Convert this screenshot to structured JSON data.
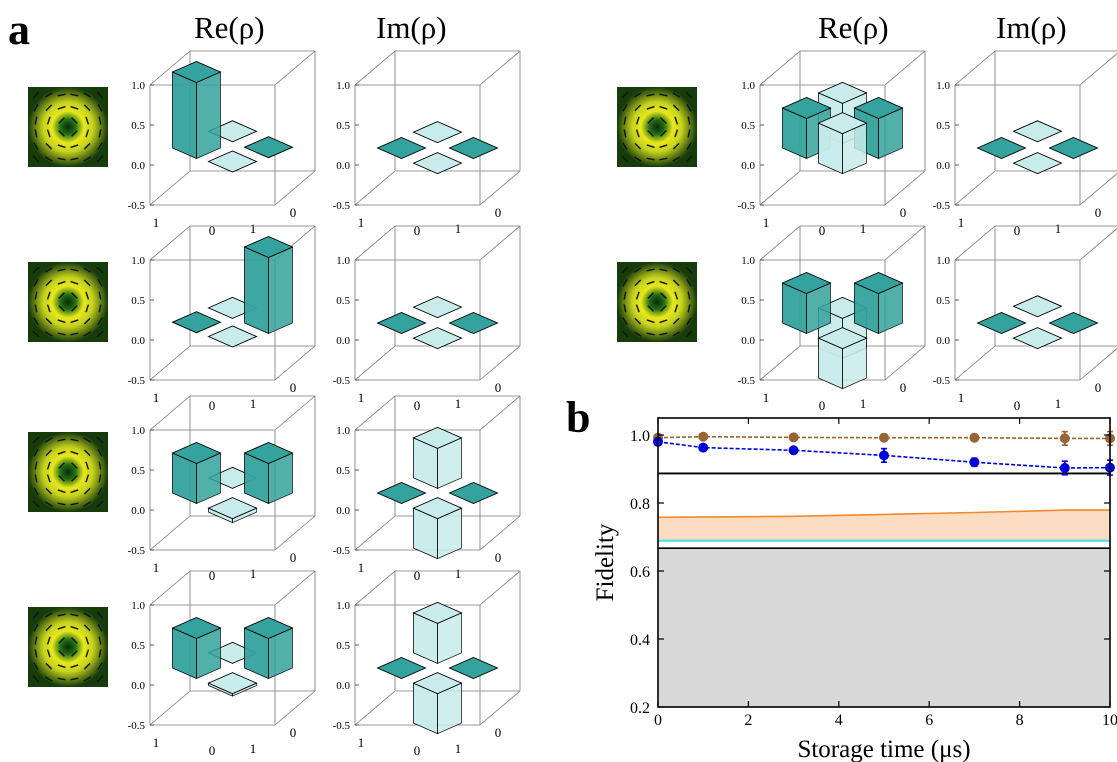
{
  "panel_a": {
    "label": "a",
    "column_titles": [
      "Re(ρ)",
      "Im(ρ)",
      "Re(ρ)",
      "Im(ρ)"
    ],
    "z_ticks": [
      "1.0",
      "0.5",
      "0.0",
      "-0.5"
    ],
    "axis_ticks": [
      "1",
      "0",
      "1",
      "0"
    ],
    "states": [
      {
        "name": "row1-left",
        "re": [
          [
            0.95,
            0.02
          ],
          [
            0.02,
            0.01
          ]
        ],
        "im": [
          [
            0,
            0.01
          ],
          [
            -0.01,
            0
          ]
        ]
      },
      {
        "name": "row2-left",
        "re": [
          [
            0.01,
            -0.02
          ],
          [
            0.02,
            0.95
          ]
        ],
        "im": [
          [
            0,
            0.01
          ],
          [
            -0.01,
            0
          ]
        ]
      },
      {
        "name": "row3-left",
        "re": [
          [
            0.5,
            0.0
          ],
          [
            -0.05,
            0.5
          ]
        ],
        "im": [
          [
            0,
            0.5
          ],
          [
            -0.5,
            0
          ]
        ]
      },
      {
        "name": "row4-left",
        "re": [
          [
            0.5,
            0.0
          ],
          [
            -0.03,
            0.5
          ]
        ],
        "im": [
          [
            0,
            0.5
          ],
          [
            -0.5,
            0
          ]
        ]
      },
      {
        "name": "row1-right",
        "re": [
          [
            0.5,
            0.5
          ],
          [
            0.5,
            0.5
          ]
        ],
        "im": [
          [
            0,
            0.02
          ],
          [
            -0.02,
            0
          ]
        ]
      },
      {
        "name": "row2-right",
        "re": [
          [
            0.5,
            -0.5
          ],
          [
            -0.5,
            0.5
          ]
        ],
        "im": [
          [
            0,
            0.02
          ],
          [
            -0.02,
            0
          ]
        ]
      }
    ]
  },
  "chart_data": {
    "type": "line",
    "panel_label": "b",
    "xlabel": "Storage time (μs)",
    "ylabel": "Fidelity",
    "xlim": [
      0,
      10
    ],
    "ylim": [
      0.2,
      1.05
    ],
    "x_ticks": [
      0,
      2,
      4,
      6,
      8,
      10
    ],
    "y_ticks": [
      0.2,
      0.4,
      0.6,
      0.8,
      1.0
    ],
    "y_tick_labels": [
      "0.2",
      "0.4",
      "0.6",
      "0.8",
      "1.0"
    ],
    "series": [
      {
        "color": "#9a6332",
        "x": [
          0,
          1,
          3,
          5,
          7,
          9,
          10
        ],
        "y": [
          0.992,
          0.995,
          0.993,
          0.992,
          0.992,
          0.99,
          0.99
        ],
        "err": [
          0.01,
          0.008,
          0.008,
          0.008,
          0.01,
          0.02,
          0.02
        ]
      },
      {
        "color": "#0000dd",
        "x": [
          0,
          1,
          3,
          5,
          7,
          9,
          10
        ],
        "y": [
          0.98,
          0.963,
          0.955,
          0.94,
          0.92,
          0.903,
          0.904
        ],
        "err": [
          0.01,
          0.008,
          0.008,
          0.02,
          0.012,
          0.02,
          0.022
        ]
      }
    ],
    "bands": [
      {
        "color": "#fcdcc2",
        "edge": "#f08a2a",
        "x": [
          0,
          3,
          7,
          9,
          10
        ],
        "lower": [
          0.69,
          0.69,
          0.69,
          0.69,
          0.69
        ],
        "upper": [
          0.758,
          0.761,
          0.772,
          0.779,
          0.779
        ]
      }
    ],
    "hlines": [
      {
        "y": 0.689,
        "color": "#3ee0e8"
      },
      {
        "y": 0.887,
        "color": "#000000"
      }
    ],
    "shaded_region": {
      "y_from": 0.2,
      "y_to": 0.667,
      "color": "#d8d8d8"
    }
  },
  "colors": {
    "bar_dark": "#35a39d",
    "bar_light": "#c8ecec",
    "blue": "#0000dd",
    "brown": "#9a6332"
  }
}
